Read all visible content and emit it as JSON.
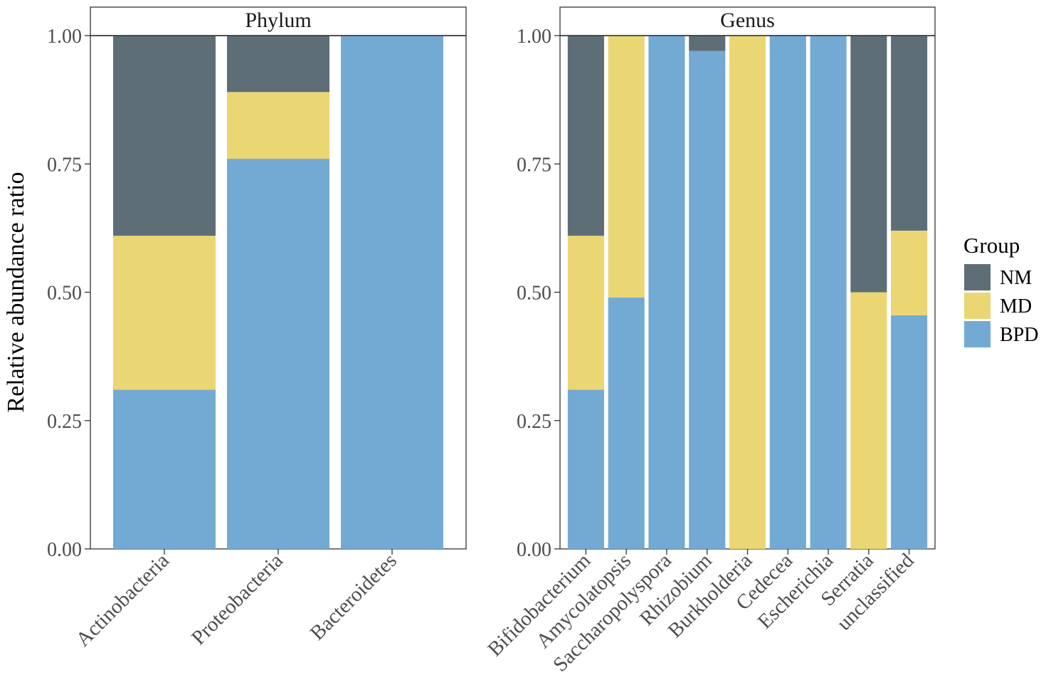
{
  "chart_data": {
    "type": "bar",
    "stacked": true,
    "ylabel": "Relative abundance ratio",
    "ylim": [
      0,
      1
    ],
    "yticks": [
      "0.00",
      "0.25",
      "0.50",
      "0.75",
      "1.00"
    ],
    "ytick_values": [
      0,
      0.25,
      0.5,
      0.75,
      1.0
    ],
    "legend": {
      "title": "Group",
      "position": "right",
      "entries": [
        "NM",
        "MD",
        "BPD"
      ]
    },
    "colors": {
      "NM": "#5e6e76",
      "MD": "#ebd674",
      "BPD": "#73aad4"
    },
    "panels": [
      {
        "title": "Phylum",
        "categories": [
          "Actinobacteria",
          "Proteobacteria",
          "Bacteroidetes"
        ],
        "series": [
          {
            "name": "BPD",
            "values": [
              0.31,
              0.76,
              1.0
            ]
          },
          {
            "name": "MD",
            "values": [
              0.3,
              0.13,
              0.0
            ]
          },
          {
            "name": "NM",
            "values": [
              0.39,
              0.11,
              0.0
            ]
          }
        ]
      },
      {
        "title": "Genus",
        "categories": [
          "Bifidobacterium",
          "Amycolatopsis",
          "Saccharopolyspora",
          "Rhizobium",
          "Burkholderia",
          "Cedecea",
          "Escherichia",
          "Serratia",
          "unclassified"
        ],
        "series": [
          {
            "name": "BPD",
            "values": [
              0.31,
              0.49,
              1.0,
              0.97,
              0.0,
              1.0,
              1.0,
              0.0,
              0.455
            ]
          },
          {
            "name": "MD",
            "values": [
              0.3,
              0.51,
              0.0,
              0.0,
              1.0,
              0.0,
              0.0,
              0.5,
              0.165
            ]
          },
          {
            "name": "NM",
            "values": [
              0.39,
              0.0,
              0.0,
              0.03,
              0.0,
              0.0,
              0.0,
              0.5,
              0.38
            ]
          }
        ]
      }
    ]
  }
}
